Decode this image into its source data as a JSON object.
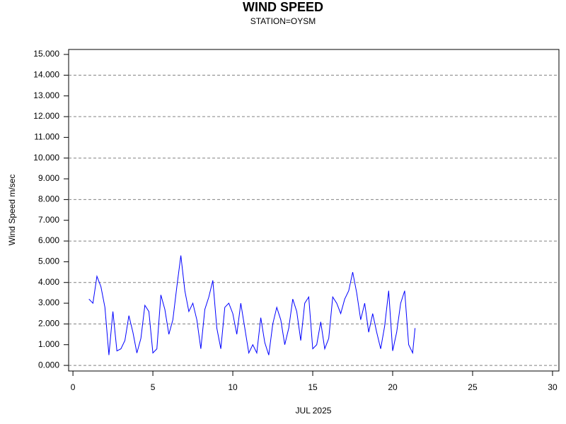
{
  "chart_data": {
    "type": "line",
    "title": "WIND SPEED",
    "subtitle": "STATION=OYSM",
    "x_label": "JUL 2025",
    "y_label": "Wind Speed m/sec",
    "color": "#0000ff",
    "x": [
      1.0,
      1.25,
      1.5,
      1.75,
      2.0,
      2.25,
      2.5,
      2.75,
      3.0,
      3.25,
      3.5,
      3.75,
      4.0,
      4.25,
      4.5,
      4.75,
      5.0,
      5.25,
      5.5,
      5.75,
      6.0,
      6.25,
      6.5,
      6.75,
      7.0,
      7.25,
      7.5,
      7.75,
      8.0,
      8.25,
      8.5,
      8.75,
      9.0,
      9.25,
      9.5,
      9.75,
      10.0,
      10.25,
      10.5,
      10.75,
      11.0,
      11.25,
      11.5,
      11.75,
      12.0,
      12.25,
      12.5,
      12.75,
      13.0,
      13.25,
      13.5,
      13.75,
      14.0,
      14.25,
      14.5,
      14.75,
      15.0,
      15.25,
      15.5,
      15.75,
      16.0,
      16.25,
      16.5,
      16.75,
      17.0,
      17.25,
      17.5,
      17.75,
      18.0,
      18.25,
      18.5,
      18.75,
      19.0,
      19.25,
      19.5,
      19.75,
      20.0,
      20.25,
      20.5,
      20.75,
      21.0,
      21.25,
      21.4
    ],
    "values": [
      3.2,
      3.0,
      4.3,
      3.8,
      2.8,
      0.5,
      2.6,
      0.7,
      0.8,
      1.2,
      2.4,
      1.6,
      0.6,
      1.3,
      2.9,
      2.6,
      0.6,
      0.8,
      3.4,
      2.7,
      1.5,
      2.2,
      3.8,
      5.3,
      3.6,
      2.6,
      3.0,
      2.2,
      0.8,
      2.7,
      3.3,
      4.1,
      1.8,
      0.8,
      2.8,
      3.0,
      2.5,
      1.5,
      3.0,
      1.8,
      0.6,
      1.0,
      0.6,
      2.3,
      1.1,
      0.5,
      2.0,
      2.8,
      2.2,
      1.0,
      1.8,
      3.2,
      2.6,
      1.2,
      3.0,
      3.3,
      0.8,
      1.0,
      2.1,
      0.8,
      1.3,
      3.3,
      3.0,
      2.5,
      3.2,
      3.6,
      4.5,
      3.5,
      2.2,
      3.0,
      1.6,
      2.5,
      1.6,
      0.8,
      1.9,
      3.6,
      0.7,
      1.6,
      3.0,
      3.6,
      1.0,
      0.6,
      1.8
    ],
    "xlim": [
      -0.27,
      30.4
    ],
    "xticks": [
      0,
      5,
      10,
      15,
      20,
      25,
      30
    ],
    "ylim": [
      -0.27,
      15.24
    ],
    "yticks": [
      {
        "value": 0,
        "label": "0.000"
      },
      {
        "value": 1,
        "label": "1.000"
      },
      {
        "value": 2,
        "label": "2.000"
      },
      {
        "value": 3,
        "label": "3.000"
      },
      {
        "value": 4,
        "label": "4.000"
      },
      {
        "value": 5,
        "label": "5.000"
      },
      {
        "value": 6,
        "label": "6.000"
      },
      {
        "value": 7,
        "label": "7.000"
      },
      {
        "value": 8,
        "label": "8.000"
      },
      {
        "value": 9,
        "label": "9.000"
      },
      {
        "value": 10,
        "label": "10.000"
      },
      {
        "value": 11,
        "label": "11.000"
      },
      {
        "value": 12,
        "label": "12.000"
      },
      {
        "value": 13,
        "label": "13.000"
      },
      {
        "value": 14,
        "label": "14.000"
      },
      {
        "value": 15,
        "label": "15.000"
      }
    ],
    "grid_yvalues": [
      0,
      2,
      4,
      6,
      8,
      10,
      12,
      14
    ]
  }
}
